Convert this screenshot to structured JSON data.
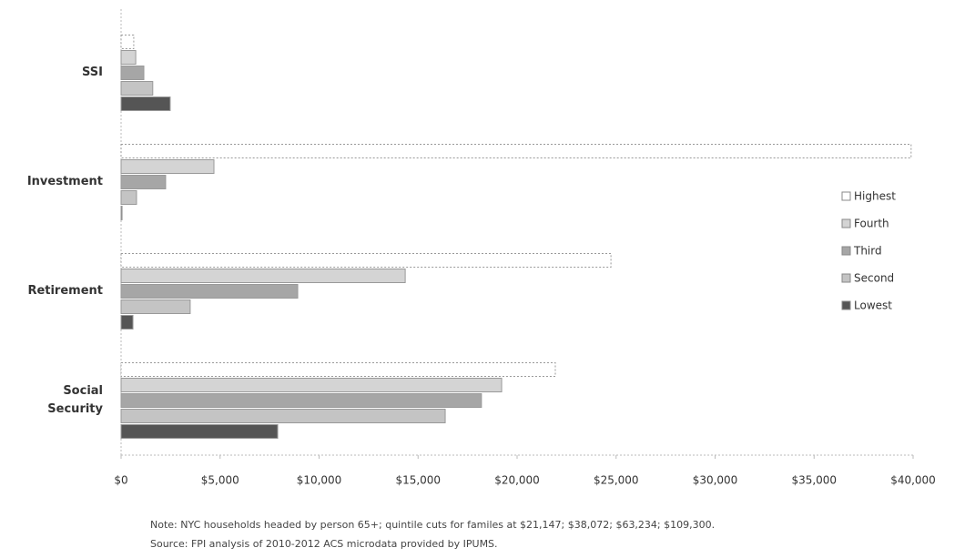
{
  "chart_data": {
    "type": "hbar",
    "categories": [
      "SSI",
      "Investment",
      "Retirement",
      "Social Security"
    ],
    "series": [
      {
        "name": "Highest",
        "color": "#ffffff",
        "values": [
          640,
          39900,
          24740,
          21930
        ]
      },
      {
        "name": "Fourth",
        "color": "#d4d4d4",
        "values": [
          740,
          4690,
          14350,
          19220
        ]
      },
      {
        "name": "Third",
        "color": "#a6a6a6",
        "values": [
          1150,
          2250,
          8920,
          18200
        ]
      },
      {
        "name": "Second",
        "color": "#c4c4c4",
        "values": [
          1600,
          780,
          3490,
          16370
        ]
      },
      {
        "name": "Lowest",
        "color": "#555555",
        "values": [
          2480,
          50,
          600,
          7910
        ]
      }
    ],
    "xlim": [
      0,
      40000
    ],
    "xticks": [
      {
        "value": 0,
        "label": "$0"
      },
      {
        "value": 5000,
        "label": "$5,000"
      },
      {
        "value": 10000,
        "label": "$10,000"
      },
      {
        "value": 15000,
        "label": "$15,000"
      },
      {
        "value": 20000,
        "label": "$20,000"
      },
      {
        "value": 25000,
        "label": "$25,000"
      },
      {
        "value": 30000,
        "label": "$30,000"
      },
      {
        "value": 35000,
        "label": "$35,000"
      },
      {
        "value": 40000,
        "label": "$40,000"
      }
    ],
    "legend": "right",
    "notes": [
      "Note: NYC households headed by person 65+; quintile cuts for familes at $21,147; $38,072; $63,234; $109,300.",
      "Source: FPI analysis of 2010-2012 ACS microdata provided by IPUMS."
    ]
  }
}
